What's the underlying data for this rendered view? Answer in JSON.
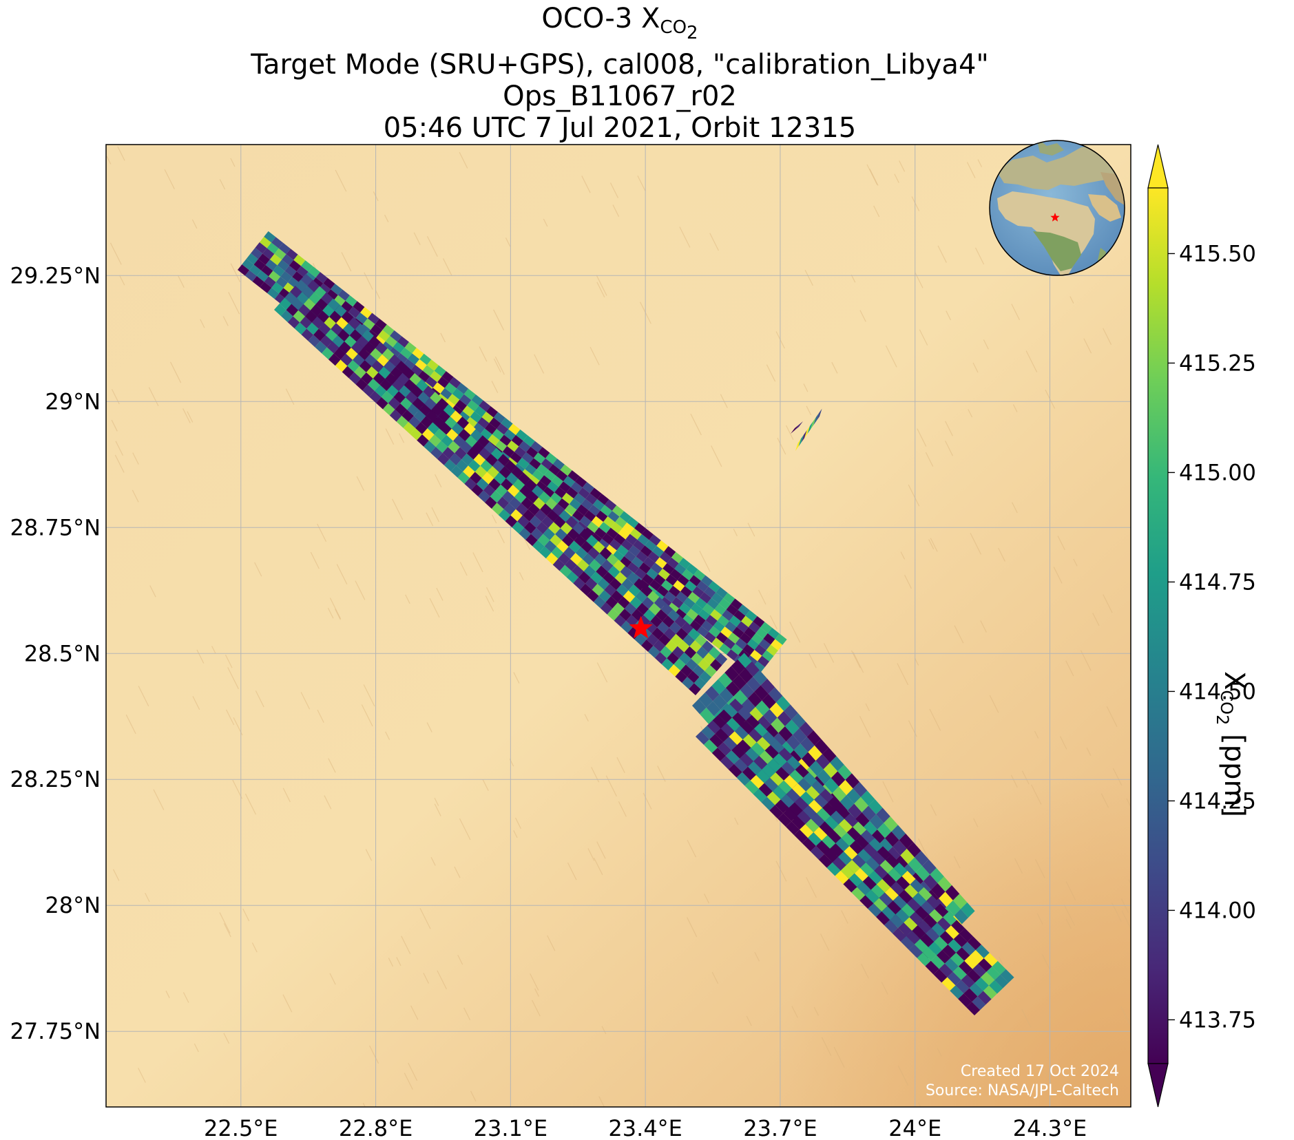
{
  "title": {
    "line1_prefix": "OCO-3 X",
    "line1_sub": "CO",
    "line1_sub2": "2",
    "line2": "Target Mode (SRU+GPS), cal008, \"calibration_Libya4\"",
    "line3": "Ops_B11067_r02",
    "line4": "05:46 UTC 7 Jul 2021, Orbit 12315"
  },
  "map": {
    "basemap": "desert satellite imagery",
    "lon_ticks": [
      "22.5°E",
      "22.8°E",
      "23.1°E",
      "23.4°E",
      "23.7°E",
      "24°E",
      "24.3°E"
    ],
    "lat_ticks": [
      "29.25°N",
      "29°N",
      "28.75°N",
      "28.5°N",
      "28.25°N",
      "28°N",
      "27.75°N"
    ],
    "lon_values": [
      22.5,
      22.8,
      23.1,
      23.4,
      23.7,
      24.0,
      24.3
    ],
    "lat_values": [
      29.25,
      29.0,
      28.75,
      28.5,
      28.25,
      28.0,
      27.75
    ],
    "lon_range": [
      22.2,
      24.48
    ],
    "lat_range": [
      27.6,
      29.51
    ],
    "grid": true,
    "target_marker": {
      "symbol": "star",
      "color": "#ff0000",
      "lon": 23.39,
      "lat": 28.55
    },
    "credit_line1": "Created 17 Oct 2024",
    "credit_line2": "Source: NASA/JPL-Caltech",
    "inset_globe": {
      "position": "top-right",
      "marker": "red star over Libya"
    }
  },
  "colorbar": {
    "label_prefix": "X",
    "label_sub": "CO",
    "label_sub2": "2",
    "label_suffix": " [ppm]",
    "colormap": "viridis",
    "min": 413.65,
    "max": 415.65,
    "extend": "both",
    "ticks": [
      413.75,
      414.0,
      414.25,
      414.5,
      414.75,
      415.0,
      415.25,
      415.5
    ],
    "tick_labels": [
      "413.75",
      "414.00",
      "414.25",
      "414.50",
      "414.75",
      "415.00",
      "415.25",
      "415.50"
    ]
  },
  "colors": {
    "sand": "#f4d9a3",
    "grid": "#b8b8b8",
    "star": "#ff0000",
    "viridis": [
      "#440154",
      "#482878",
      "#3e4a89",
      "#31688e",
      "#26828e",
      "#1f9e89",
      "#35b779",
      "#6ece58",
      "#b5de2b",
      "#fde725"
    ]
  }
}
